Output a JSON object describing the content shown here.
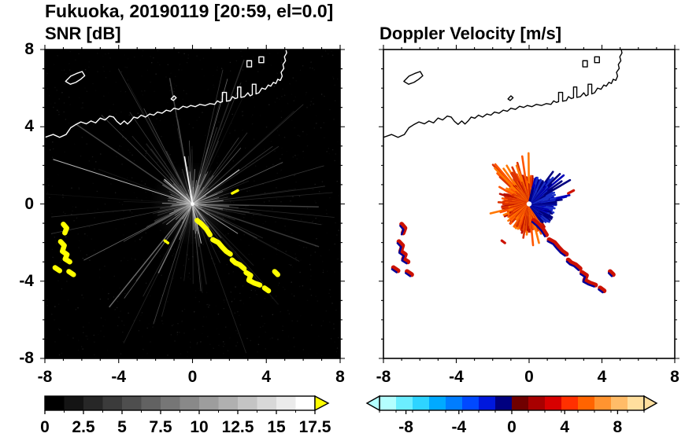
{
  "header": {
    "title": "Fukuoka, 20190119 [20:59, el=0.0]"
  },
  "panels": [
    {
      "title": "SNR [dB]",
      "x_tick_labels": [
        "-8",
        "-4",
        "0",
        "4",
        "8"
      ],
      "y_tick_labels": [
        "8",
        "4",
        "0",
        "-4",
        "-8"
      ],
      "colorbar_tick_labels": [
        "0",
        "2.5",
        "5",
        "7.5",
        "10",
        "12.5",
        "15",
        "17.5"
      ]
    },
    {
      "title": "Doppler Velocity [m/s]",
      "x_tick_labels": [
        "-8",
        "-4",
        "0",
        "4",
        "8"
      ],
      "y_tick_labels": [],
      "colorbar_tick_labels": [
        "-8",
        "-4",
        "0",
        "4",
        "8"
      ]
    }
  ],
  "map": {
    "coastline_main": [
      [
        -8.0,
        3.45
      ],
      [
        -7.55,
        3.6
      ],
      [
        -7.2,
        3.45
      ],
      [
        -6.85,
        3.6
      ],
      [
        -6.6,
        3.95
      ],
      [
        -6.35,
        4.1
      ],
      [
        -6.05,
        4.25
      ],
      [
        -5.75,
        4.15
      ],
      [
        -5.5,
        4.3
      ],
      [
        -5.25,
        4.2
      ],
      [
        -5.0,
        4.45
      ],
      [
        -4.75,
        4.35
      ],
      [
        -4.5,
        4.55
      ],
      [
        -4.28,
        4.5
      ],
      [
        -4.1,
        4.28
      ],
      [
        -3.9,
        4.12
      ],
      [
        -3.7,
        4.3
      ],
      [
        -3.52,
        4.14
      ],
      [
        -3.35,
        4.3
      ],
      [
        -3.18,
        4.5
      ],
      [
        -2.98,
        4.44
      ],
      [
        -2.78,
        4.6
      ],
      [
        -2.55,
        4.5
      ],
      [
        -2.32,
        4.66
      ],
      [
        -2.1,
        4.6
      ],
      [
        -1.9,
        4.76
      ],
      [
        -1.65,
        4.7
      ],
      [
        -1.42,
        4.86
      ],
      [
        -1.2,
        4.8
      ],
      [
        -1.0,
        4.96
      ],
      [
        -0.75,
        4.9
      ],
      [
        -0.52,
        5.06
      ],
      [
        -0.3,
        5.0
      ],
      [
        -0.1,
        5.1
      ],
      [
        0.15,
        5.04
      ],
      [
        0.4,
        5.16
      ],
      [
        0.68,
        5.1
      ],
      [
        0.95,
        5.2
      ],
      [
        1.2,
        5.16
      ],
      [
        1.35,
        5.34
      ],
      [
        1.5,
        5.26
      ],
      [
        1.62,
        5.3
      ],
      [
        1.62,
        5.78
      ],
      [
        1.84,
        5.78
      ],
      [
        1.84,
        5.32
      ],
      [
        2.05,
        5.36
      ],
      [
        2.16,
        5.56
      ],
      [
        2.32,
        5.46
      ],
      [
        2.44,
        5.5
      ],
      [
        2.44,
        6.06
      ],
      [
        2.62,
        6.06
      ],
      [
        2.62,
        5.52
      ],
      [
        2.82,
        5.56
      ],
      [
        3.0,
        5.76
      ],
      [
        3.12,
        5.6
      ],
      [
        3.24,
        5.66
      ],
      [
        3.24,
        6.2
      ],
      [
        3.44,
        6.2
      ],
      [
        3.44,
        5.7
      ],
      [
        3.6,
        5.76
      ],
      [
        3.76,
        6.0
      ],
      [
        3.95,
        5.94
      ],
      [
        4.1,
        6.16
      ],
      [
        4.24,
        6.1
      ],
      [
        4.38,
        6.3
      ],
      [
        4.52,
        6.24
      ],
      [
        4.62,
        6.46
      ],
      [
        4.76,
        6.4
      ],
      [
        4.86,
        6.62
      ],
      [
        4.8,
        6.82
      ],
      [
        4.95,
        7.02
      ],
      [
        4.9,
        7.22
      ],
      [
        5.04,
        7.42
      ],
      [
        4.98,
        7.62
      ],
      [
        5.1,
        7.82
      ],
      [
        5.05,
        8.05
      ]
    ],
    "coastline_islands": [
      [
        [
          -6.88,
          6.35
        ],
        [
          -6.6,
          6.62
        ],
        [
          -6.28,
          6.76
        ],
        [
          -5.98,
          6.86
        ],
        [
          -5.84,
          6.64
        ],
        [
          -6.06,
          6.46
        ],
        [
          -6.32,
          6.3
        ],
        [
          -6.62,
          6.2
        ]
      ],
      [
        [
          2.95,
          7.1
        ],
        [
          2.95,
          7.42
        ],
        [
          3.2,
          7.42
        ],
        [
          3.2,
          7.1
        ]
      ],
      [
        [
          3.6,
          7.32
        ],
        [
          3.6,
          7.62
        ],
        [
          3.86,
          7.62
        ],
        [
          3.86,
          7.32
        ]
      ],
      [
        [
          -1.16,
          5.44
        ],
        [
          -1.0,
          5.6
        ],
        [
          -0.88,
          5.5
        ],
        [
          -1.04,
          5.36
        ]
      ]
    ],
    "echo_chain": [
      [
        [
          0.25,
          -0.85
        ],
        [
          0.5,
          -1.05
        ],
        [
          0.75,
          -1.3
        ],
        [
          0.95,
          -1.6
        ]
      ],
      [
        [
          1.1,
          -1.85
        ],
        [
          1.4,
          -2.0
        ],
        [
          1.62,
          -2.25
        ],
        [
          1.82,
          -2.45
        ],
        [
          2.05,
          -2.6
        ]
      ],
      [
        [
          2.15,
          -2.9
        ],
        [
          2.32,
          -3.05
        ],
        [
          2.56,
          -3.15
        ],
        [
          2.8,
          -3.35
        ]
      ],
      [
        [
          2.9,
          -3.55
        ],
        [
          3.15,
          -3.7
        ],
        [
          3.05,
          -3.95
        ],
        [
          3.35,
          -4.1
        ],
        [
          3.65,
          -4.2
        ]
      ],
      [
        [
          3.9,
          -4.35
        ],
        [
          4.12,
          -4.5
        ]
      ],
      [
        [
          4.45,
          -3.5
        ],
        [
          4.62,
          -3.66
        ]
      ]
    ],
    "west_echoes": [
      [
        [
          -7.0,
          -1.05
        ],
        [
          -6.82,
          -1.25
        ],
        [
          -6.92,
          -1.5
        ]
      ],
      [
        [
          -7.15,
          -1.95
        ],
        [
          -6.95,
          -2.15
        ],
        [
          -7.05,
          -2.45
        ],
        [
          -6.8,
          -2.62
        ],
        [
          -6.9,
          -2.85
        ],
        [
          -6.65,
          -3.0
        ]
      ],
      [
        [
          -7.45,
          -3.3
        ],
        [
          -7.2,
          -3.46
        ]
      ],
      [
        [
          -6.7,
          -3.5
        ],
        [
          -6.45,
          -3.66
        ]
      ]
    ],
    "small_echoes": [
      [
        [
          2.15,
          0.55
        ],
        [
          2.45,
          0.7
        ]
      ],
      [
        [
          -1.5,
          -1.9
        ],
        [
          -1.33,
          -2.02
        ]
      ]
    ]
  },
  "chart_data": [
    {
      "type": "heatmap",
      "title": "SNR [dB]",
      "background": "#000000",
      "coastline_color": "#ffffff",
      "axes": {
        "xlim": [
          -8,
          8
        ],
        "ylim": [
          -8,
          8
        ],
        "x_major_ticks": [
          -8,
          -4,
          0,
          4,
          8
        ],
        "y_major_ticks": [
          -8,
          -4,
          0,
          4,
          8
        ],
        "minor_tick_step": 1
      },
      "colorbar": {
        "min": 0,
        "max": 17.5,
        "tick_values": [
          0,
          2.5,
          5,
          7.5,
          10,
          12.5,
          15,
          17.5
        ],
        "colors": [
          "#000000",
          "#141414",
          "#272727",
          "#3b3b3b",
          "#4e4e4e",
          "#626262",
          "#767676",
          "#898989",
          "#9d9d9d",
          "#b0b0b0",
          "#c4c4c4",
          "#d8d8d8",
          "#ebebeb",
          "#ffffff"
        ],
        "over_color": "#ffff00"
      },
      "features": {
        "radar_center": [
          0,
          0
        ],
        "noise_speckle": {
          "count": 900
        },
        "clutter_rays": {
          "count": 120,
          "bright_count": 70,
          "min_len": 1.0,
          "max_len": 8.3
        },
        "feature_rays": [
          {
            "angle_deg": 100,
            "length": 2.5,
            "color": "#ffffff",
            "width": 1.6
          },
          {
            "angle_deg": 163,
            "length": 7.9,
            "color": "#b8b8b8",
            "width": 1.0
          },
          {
            "angle_deg": 35,
            "length": 3.1,
            "color": "#cfcfcf",
            "width": 1.0
          },
          {
            "angle_deg": -32,
            "length": 2.9,
            "color": "#9a9a9a",
            "width": 1.0
          },
          {
            "angle_deg": -77,
            "length": 2.1,
            "color": "#c0c0c0",
            "width": 1.0
          },
          {
            "angle_deg": 140,
            "length": 2.0,
            "color": "#d8d8d8",
            "width": 1.2
          }
        ],
        "strong_echo_color": "#ffff00"
      }
    },
    {
      "type": "heatmap",
      "title": "Doppler Velocity [m/s]",
      "background": "#ffffff",
      "coastline_color": "#000000",
      "axes": {
        "xlim": [
          -8,
          8
        ],
        "ylim": [
          -8,
          8
        ],
        "x_major_ticks": [
          -8,
          -4,
          0,
          4,
          8
        ],
        "y_major_ticks": [
          -8,
          -4,
          0,
          4,
          8
        ],
        "minor_tick_step": 1
      },
      "colorbar": {
        "min": -10,
        "max": 10,
        "tick_values": [
          -8,
          -4,
          0,
          4,
          8
        ],
        "colors": [
          "#b4ffff",
          "#6ceeff",
          "#2ed4ff",
          "#00aaff",
          "#007dff",
          "#0049ff",
          "#0018dd",
          "#000080",
          "#700000",
          "#a80000",
          "#d80000",
          "#ff3000",
          "#ff6400",
          "#ff9430",
          "#ffbc68",
          "#ffdf9e"
        ],
        "under_color": "#b4ffff",
        "over_color": "#ffdf9e"
      },
      "features": {
        "radar_center": [
          0,
          0
        ],
        "center_hole_radius": 0.14,
        "velocity_wedges": [
          {
            "name": "positive-red-west-side",
            "angle_from": 78,
            "angle_to": 306,
            "base_radius": 0.55,
            "radius_jitter": 0.95,
            "colors": [
              "#bb1100",
              "#dd3300",
              "#ff5500",
              "#ff7700"
            ],
            "spikes": [
              {
                "from": 88,
                "to": 140,
                "prob": 0.3,
                "extra": 1.9
              },
              {
                "from": 150,
                "to": 205,
                "prob": 0.15,
                "extra": 0.9
              },
              {
                "from": 250,
                "to": 300,
                "prob": 0.2,
                "extra": 0.9
              }
            ]
          },
          {
            "name": "negative-blue-east-side",
            "angle_from": -54,
            "angle_to": 78,
            "base_radius": 0.55,
            "radius_jitter": 0.95,
            "colors": [
              "#000080",
              "#0000b8",
              "#1a30c8"
            ],
            "spikes": [
              {
                "from": 5,
                "to": 60,
                "prob": 0.28,
                "extra": 1.4
              }
            ]
          }
        ],
        "echo_colors": {
          "main": "#cc1100",
          "fringe": "#000099"
        }
      }
    }
  ]
}
